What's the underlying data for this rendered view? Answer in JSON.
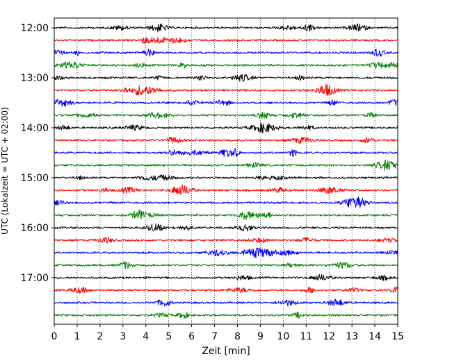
{
  "chart_data": {
    "type": "line",
    "title": "",
    "xlabel": "Zeit  [min]",
    "ylabel": "UTC (Lokalzeit = UTC + 02:00)",
    "xlim": [
      0,
      15
    ],
    "x_ticks": [
      "0",
      "1",
      "2",
      "3",
      "4",
      "5",
      "6",
      "7",
      "8",
      "9",
      "10",
      "11",
      "12",
      "13",
      "14",
      "15"
    ],
    "y_ticks": [
      "12:00",
      "13:00",
      "14:00",
      "15:00",
      "16:00",
      "17:00"
    ],
    "trace_interval_minutes": 15,
    "trace_start": "12:00",
    "trace_count": 24,
    "grid": "vertical dotted",
    "legend": "none",
    "trace_colors": [
      "#000000",
      "#ff0000",
      "#0000ff",
      "#008000"
    ]
  }
}
